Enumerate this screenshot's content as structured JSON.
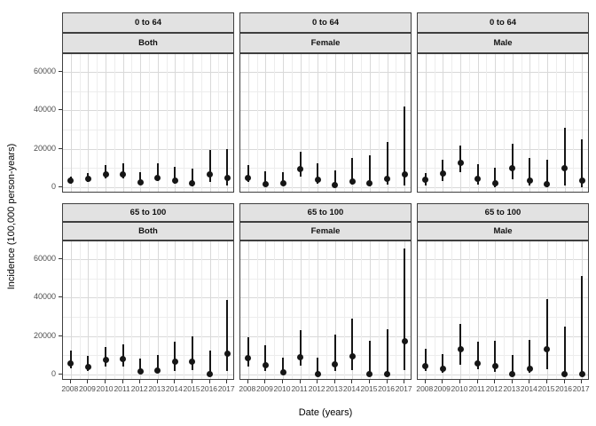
{
  "chart_data": {
    "type": "pointrange",
    "title": "",
    "xlabel": "Date (years)",
    "ylabel": "Incidence (100,000 person-years)",
    "x": [
      2008,
      2009,
      2010,
      2011,
      2012,
      2013,
      2014,
      2015,
      2016,
      2017
    ],
    "x_tick_labels": [
      "2008",
      "2009",
      "2010",
      "2011",
      "2012",
      "2013",
      "2014",
      "2015",
      "2016",
      "2017"
    ],
    "y_ticks": [
      0,
      20000,
      40000,
      60000
    ],
    "y_tick_labels": [
      "0",
      "20000",
      "40000",
      "60000"
    ],
    "y_minor_ticks": [
      10000,
      30000,
      50000
    ],
    "xlim": [
      2007.55,
      2017.45
    ],
    "ylim": [
      -3300,
      69300
    ],
    "grid": "major and minor, light gray on white, theme_bw style",
    "legend": "none",
    "facet_rows": [
      "0 to 64",
      "65 to 100"
    ],
    "facet_cols": [
      "Both",
      "Female",
      "Male"
    ],
    "panels": [
      {
        "age_group": "0 to 64",
        "sex": "Both",
        "est": [
          3500,
          4300,
          6700,
          6800,
          2600,
          5000,
          3300,
          1800,
          6700,
          4800
        ],
        "lower": [
          2000,
          2600,
          4400,
          4500,
          1300,
          3000,
          1600,
          600,
          2600,
          700
        ],
        "upper": [
          5600,
          7200,
          11400,
          12200,
          7800,
          12200,
          10600,
          9800,
          19300,
          20000
        ]
      },
      {
        "age_group": "0 to 64",
        "sex": "Female",
        "est": [
          4700,
          1700,
          2000,
          9600,
          3800,
          1000,
          3100,
          1900,
          4400,
          6600
        ],
        "lower": [
          2500,
          500,
          700,
          5500,
          1800,
          200,
          1200,
          600,
          1500,
          800
        ],
        "upper": [
          11500,
          8300,
          7900,
          18600,
          12300,
          8800,
          15400,
          16500,
          23400,
          41900
        ]
      },
      {
        "age_group": "0 to 64",
        "sex": "Male",
        "est": [
          3900,
          7000,
          12800,
          4400,
          1900,
          10000,
          3300,
          1600,
          10100,
          3600
        ],
        "lower": [
          800,
          3100,
          7800,
          1200,
          100,
          3900,
          800,
          100,
          800,
          100
        ],
        "upper": [
          7300,
          14500,
          21800,
          12000,
          10100,
          22600,
          15100,
          14500,
          30700,
          25000
        ]
      },
      {
        "age_group": "65 to 100",
        "sex": "Both",
        "est": [
          5800,
          3700,
          7500,
          8000,
          1500,
          2200,
          6500,
          6600,
          200,
          10700
        ],
        "lower": [
          3000,
          1800,
          4000,
          4200,
          400,
          800,
          2000,
          2400,
          0,
          1700
        ],
        "upper": [
          12200,
          9800,
          14500,
          15700,
          8300,
          10300,
          17200,
          20000,
          12400,
          39000
        ]
      },
      {
        "age_group": "65 to 100",
        "sex": "Female",
        "est": [
          8300,
          4900,
          1100,
          9100,
          200,
          5200,
          9600,
          200,
          200,
          17500
        ],
        "lower": [
          4000,
          2000,
          100,
          4500,
          0,
          2000,
          2300,
          0,
          0,
          2300
        ],
        "upper": [
          19500,
          15200,
          8800,
          22900,
          8800,
          20600,
          29300,
          17500,
          23600,
          65700
        ]
      },
      {
        "age_group": "65 to 100",
        "sex": "Male",
        "est": [
          4200,
          2900,
          13100,
          5800,
          4500,
          300,
          2900,
          13000,
          200,
          200
        ],
        "lower": [
          1800,
          1000,
          5200,
          2500,
          1500,
          0,
          800,
          2700,
          0,
          0
        ],
        "upper": [
          13400,
          10600,
          26500,
          17200,
          17500,
          10300,
          18000,
          39200,
          24900,
          51100
        ]
      }
    ],
    "colors": {
      "point": "#161616",
      "strip_fill": "#e2e2e2",
      "panel_border": "#3f3f3f",
      "grid_major": "#d9d9d9",
      "grid_minor": "#ededed",
      "tick_text": "#4d4d4d"
    }
  }
}
